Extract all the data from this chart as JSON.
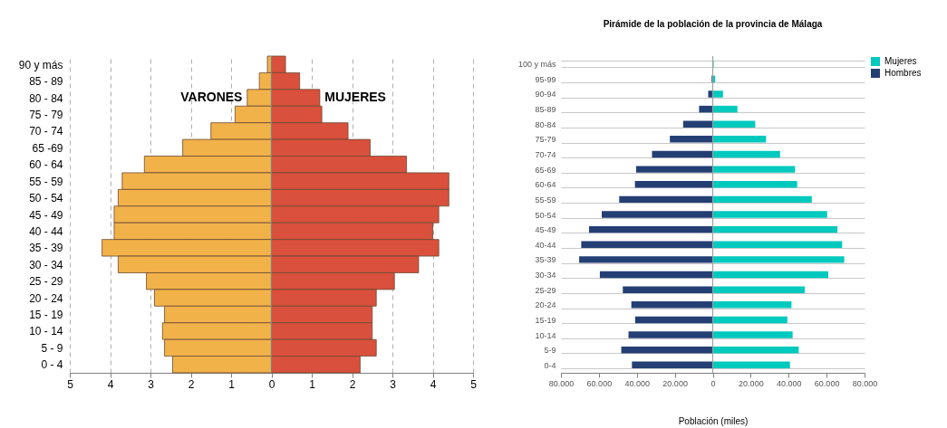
{
  "chart_data": [
    {
      "type": "bar",
      "orientation": "horizontal",
      "stacked": true,
      "categories": [
        "90 y más",
        "85 - 89",
        "80 - 84",
        "75 - 79",
        "70 - 74",
        "65 -69",
        "60 - 64",
        "55 - 59",
        "50 - 54",
        "45 - 49",
        "40 - 44",
        "35 - 39",
        "30 - 34",
        "25 - 29",
        "20 - 24",
        "15 - 19",
        "10 - 14",
        "5 - 9",
        "0 - 4"
      ],
      "series": [
        {
          "name": "VARONES",
          "color": "#f2b24a",
          "values": [
            -0.1,
            -0.3,
            -0.6,
            -0.9,
            -1.5,
            -2.2,
            -3.15,
            -3.7,
            -3.8,
            -3.9,
            -3.9,
            -4.2,
            -3.8,
            -3.1,
            -2.9,
            -2.65,
            -2.7,
            -2.65,
            -2.45
          ]
        },
        {
          "name": "MUJERES",
          "color": "#d9503c",
          "values": [
            0.35,
            0.7,
            1.2,
            1.25,
            1.9,
            2.45,
            3.35,
            4.4,
            4.4,
            4.15,
            4.0,
            4.15,
            3.65,
            3.05,
            2.6,
            2.5,
            2.5,
            2.6,
            2.2
          ]
        }
      ],
      "xlim": [
        -5,
        5
      ],
      "xticks": [
        {
          "value": -5,
          "label": "5"
        },
        {
          "value": -4,
          "label": "4"
        },
        {
          "value": -3,
          "label": "3"
        },
        {
          "value": -2,
          "label": "2"
        },
        {
          "value": -1,
          "label": "1"
        },
        0,
        1,
        2,
        3,
        4,
        5
      ],
      "grid": "x",
      "legend": false,
      "ref_lines": [
        {
          "axis": "x",
          "value": 0,
          "color": "#808080"
        }
      ]
    },
    {
      "type": "bar",
      "orientation": "horizontal",
      "stacked": true,
      "title": "Pirámide de la población de la provincia de Málaga",
      "xlabel": "Población (miles)",
      "categories": [
        "100 y más",
        "95-99",
        "90-94",
        "85-89",
        "80-84",
        "75-79",
        "70-74",
        "65-69",
        "60-64",
        "55-59",
        "50-54",
        "45-49",
        "40-44",
        "35-39",
        "30-34",
        "25-29",
        "20-24",
        "15-19",
        "10-14",
        "5-9",
        "0-4"
      ],
      "series": [
        {
          "name": "Mujeres",
          "color": "#00c9be",
          "values": [
            500,
            1300,
            5400,
            13000,
            22400,
            28100,
            35500,
            43400,
            44500,
            52200,
            60300,
            65700,
            68200,
            69300,
            60900,
            48500,
            41500,
            39300,
            42100,
            45300,
            40700
          ]
        },
        {
          "name": "Hombres",
          "color": "#243f74",
          "values": [
            0,
            -600,
            -2400,
            -7200,
            -15600,
            -22600,
            -32000,
            -40400,
            -41000,
            -49300,
            -58500,
            -65200,
            -69300,
            -70400,
            -59500,
            -47400,
            -42900,
            -40900,
            -44400,
            -48200,
            -42600
          ]
        }
      ],
      "xlim": [
        -80000,
        80000
      ],
      "xticks": [
        {
          "value": -80000,
          "label": "80.000"
        },
        {
          "value": -60000,
          "label": "60.000"
        },
        {
          "value": -40000,
          "label": "40.000"
        },
        {
          "value": -20000,
          "label": "20.000"
        },
        0,
        {
          "value": 20000,
          "label": "20.000"
        },
        {
          "value": 40000,
          "label": "40.000"
        },
        {
          "value": 60000,
          "label": "60.000"
        },
        {
          "value": 80000,
          "label": "80.000"
        }
      ],
      "grid": "y",
      "legend": "top right",
      "ref_lines": [
        {
          "axis": "x",
          "value": 0,
          "color": "#a0a0a0"
        }
      ]
    }
  ]
}
